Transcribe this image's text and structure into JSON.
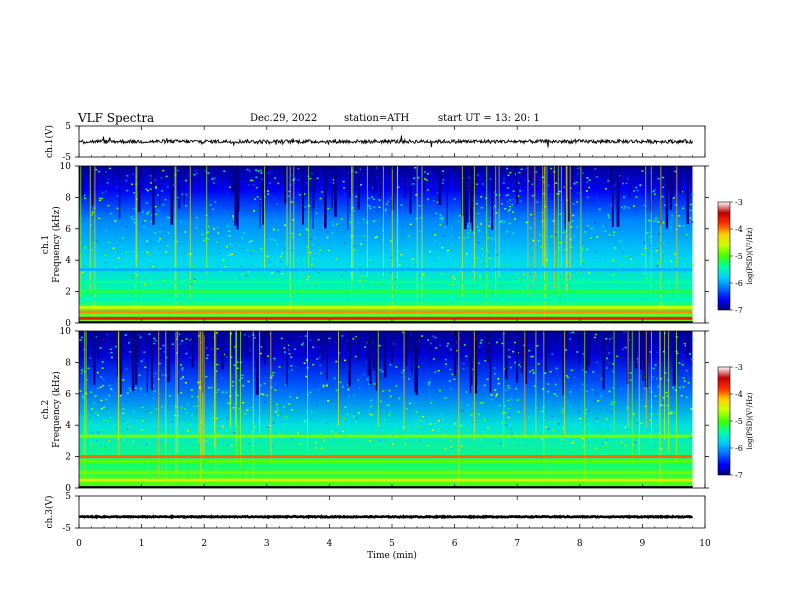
{
  "header": {
    "title": "VLF  Spectra",
    "date": "Dec.29, 2022",
    "station": "station=ATH",
    "start": "start  UT  =    13: 20: 1"
  },
  "colors": {
    "spectrogram_colormap": [
      "#00007a",
      "#0000ff",
      "#0070ff",
      "#00d0ff",
      "#00ffa0",
      "#40ff00",
      "#c8ff00",
      "#ffd000",
      "#ff3000",
      "#c00000",
      "#ffffff"
    ],
    "waveform": "#000000"
  },
  "chart_data": [
    {
      "type": "line",
      "ylabel": "ch.1(V)",
      "ylim": [
        -5,
        5
      ],
      "yticks": [
        "5",
        "-5"
      ],
      "x_range_min": [
        0,
        10
      ],
      "data_extent_min": [
        0,
        9.8
      ],
      "description_of_values": "noisy waveform near 0 V, excursions about ±1.5 V",
      "mean": 0.0,
      "amplitude": 1.0
    },
    {
      "type": "heatmap",
      "ylabel": "ch.1\nFrequency  (kHz)",
      "ylim": [
        0,
        10
      ],
      "yticks": [
        "0",
        "2",
        "4",
        "6",
        "8",
        "10"
      ],
      "colorbar": {
        "label": "log(PSD)(V²/Hz)",
        "ticks": [
          "-3",
          "-4",
          "-5",
          "-6",
          "-7"
        ],
        "range": [
          -7,
          -3
        ]
      },
      "bands_khz": [
        {
          "f": 0.3,
          "level": -3.3
        },
        {
          "f": 0.7,
          "level": -3.7
        },
        {
          "f": 1.0,
          "level": -4.3
        },
        {
          "f": 1.5,
          "level": -5.3
        },
        {
          "f": 2.0,
          "level": -5.0
        },
        {
          "f": 2.6,
          "level": -5.2
        },
        {
          "f": 3.4,
          "level": -5.8
        }
      ]
    },
    {
      "type": "heatmap",
      "ylabel": "ch.2\nFrequency  (kHz)",
      "ylim": [
        0,
        10
      ],
      "yticks": [
        "0",
        "2",
        "4",
        "6",
        "8",
        "10"
      ],
      "colorbar": {
        "label": "log(PSD)(V²/Hz)",
        "ticks": [
          "-3",
          "-4",
          "-5",
          "-6",
          "-7"
        ],
        "range": [
          -7,
          -3
        ]
      },
      "bands_khz": [
        {
          "f": 0.5,
          "level": -4.2
        },
        {
          "f": 1.0,
          "level": -4.6
        },
        {
          "f": 1.7,
          "level": -4.7
        },
        {
          "f": 2.0,
          "level": -3.6
        },
        {
          "f": 3.3,
          "level": -4.6
        }
      ]
    },
    {
      "type": "line",
      "ylabel": "ch.3(V)",
      "ylim": [
        -5,
        5
      ],
      "yticks": [
        "5",
        "-5"
      ],
      "x_range_min": [
        0,
        10
      ],
      "data_extent_min": [
        0,
        9.8
      ],
      "mean": -1.5,
      "amplitude": 0.15
    }
  ],
  "xaxis": {
    "label": "Time  (min)",
    "ticks": [
      "0",
      "1",
      "2",
      "3",
      "4",
      "5",
      "6",
      "7",
      "8",
      "9",
      "10"
    ],
    "range": [
      0,
      10
    ]
  }
}
